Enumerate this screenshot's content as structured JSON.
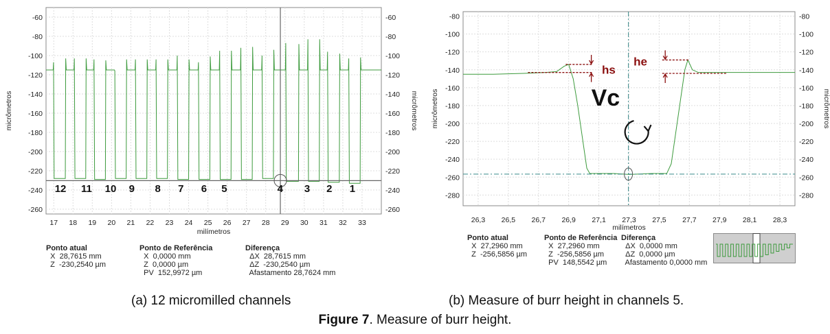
{
  "figure": {
    "number": "Figure 7",
    "title": ". Measure of burr height.",
    "caption_a": "(a) 12 micromilled channels",
    "caption_b": "(b) Measure of burr height in channels 5."
  },
  "panel_a": {
    "info": {
      "current_heading": "Ponto atual",
      "current_x": "X  28,7615 mm",
      "current_z": "Z  -230,2540 µm",
      "ref_heading": "Ponto de Referência",
      "ref_x": "X  0,0000 mm",
      "ref_z": "Z  0,0000 µm",
      "ref_pv": "PV  152,9972 µm",
      "diff_heading": "Diferença",
      "diff_x": "ΔX  28,7615 mm",
      "diff_z": "ΔZ  -230,2540 µm",
      "diff_dist": "Afastamento 28,7624 mm"
    }
  },
  "panel_b": {
    "annotations": {
      "hs": "hs",
      "he": "he",
      "vc": "Vc"
    },
    "info": {
      "current_heading": "Ponto atual",
      "current_x": "X  27,2960 mm",
      "current_z": "Z  -256,5856 µm",
      "ref_heading": "Ponto de Referência",
      "ref_x": "X  27,2960 mm",
      "ref_z": "Z  -256,5856 µm",
      "ref_pv": "PV  148,5542 µm",
      "diff_heading": "Diferença",
      "diff_x": "ΔX  0,0000 mm",
      "diff_z": "ΔZ  0,0000 µm",
      "diff_dist": "Afastamento 0,0000 mm"
    }
  },
  "chart_data": [
    {
      "type": "line",
      "xlabel": "milímetros",
      "ylabel": "micrômetros",
      "ylabel_right": "micrômetros",
      "xlim": [
        16.6,
        34.0
      ],
      "ylim": [
        -265,
        -50
      ],
      "x_ticks": [
        "17",
        "18",
        "19",
        "20",
        "21",
        "22",
        "23",
        "24",
        "25",
        "26",
        "27",
        "28",
        "29",
        "30",
        "31",
        "32",
        "33"
      ],
      "y_ticks": [
        -60,
        -80,
        -100,
        -120,
        -140,
        -160,
        -180,
        -200,
        -220,
        -240,
        -260
      ],
      "cursor_x": 28.76,
      "cursor_z": -230.25,
      "line_color": "#3c9a3c",
      "channel_labels": [
        "12",
        "11",
        "10",
        "9",
        "8",
        "7",
        "6",
        "5",
        "4",
        "3",
        "2",
        "1"
      ],
      "channel_label_x": [
        17.35,
        18.7,
        19.95,
        21.05,
        22.4,
        23.6,
        24.8,
        25.85,
        28.75,
        30.15,
        31.3,
        32.5
      ],
      "channels": [
        {
          "label": "12",
          "x_start": 17.0,
          "x_end": 17.62,
          "top_left": -107,
          "top_right": -103,
          "bottom": -228
        },
        {
          "label": "11",
          "x_start": 18.08,
          "x_end": 18.68,
          "top_left": -103,
          "top_right": -103,
          "bottom": -228
        },
        {
          "label": "10",
          "x_start": 19.1,
          "x_end": 19.7,
          "top_left": -104,
          "top_right": -105,
          "bottom": -229
        },
        {
          "label": "9",
          "x_start": 20.18,
          "x_end": 20.78,
          "top_left": -116,
          "top_right": -104,
          "bottom": -228
        },
        {
          "label": "8",
          "x_start": 21.25,
          "x_end": 21.85,
          "top_left": -104,
          "top_right": -104,
          "bottom": -228
        },
        {
          "label": "7",
          "x_start": 22.32,
          "x_end": 22.92,
          "top_left": -104,
          "top_right": -104,
          "bottom": -228
        },
        {
          "label": "6",
          "x_start": 23.42,
          "x_end": 24.02,
          "top_left": -100,
          "top_right": -104,
          "bottom": -229
        },
        {
          "label": "5",
          "x_start": 24.52,
          "x_end": 25.12,
          "top_left": -107,
          "top_right": -101,
          "bottom": -229
        },
        {
          "label": "4",
          "x_start": 25.62,
          "x_end": 26.22,
          "top_left": -95,
          "top_right": -95,
          "bottom": -229
        },
        {
          "label": "3",
          "x_start": 26.72,
          "x_end": 27.32,
          "top_left": -92,
          "top_right": -91,
          "bottom": -229
        },
        {
          "label": "2",
          "x_start": 27.82,
          "x_end": 28.42,
          "top_left": -100,
          "top_right": -94,
          "bottom": -228
        },
        {
          "label": "1",
          "x_start": 29.05,
          "x_end": 29.72,
          "top_left": -87,
          "top_right": -88,
          "bottom": -231
        },
        {
          "label": "",
          "x_start": 30.2,
          "x_end": 30.8,
          "top_left": -83,
          "top_right": -83,
          "bottom": -231
        },
        {
          "label": "",
          "x_start": 31.22,
          "x_end": 31.84,
          "top_left": -96,
          "top_right": -98,
          "bottom": -232
        },
        {
          "label": "",
          "x_start": 32.32,
          "x_end": 32.92,
          "top_left": -103,
          "top_right": -102,
          "bottom": -233
        }
      ],
      "baseline_level": -115
    },
    {
      "type": "line",
      "xlabel": "milímetros",
      "ylabel": "micrômetros",
      "ylabel_right": "micrômetros",
      "xlim": [
        26.2,
        28.4
      ],
      "ylim": [
        -292,
        -75
      ],
      "x_ticks": [
        "26,3",
        "26,5",
        "26,7",
        "26,9",
        "27,1",
        "27,3",
        "27,5",
        "27,7",
        "27,9",
        "28,1",
        "28,3"
      ],
      "x_tick_values": [
        26.3,
        26.5,
        26.7,
        26.9,
        27.1,
        27.3,
        27.5,
        27.7,
        27.9,
        28.1,
        28.3
      ],
      "y_ticks": [
        -80,
        -100,
        -120,
        -140,
        -160,
        -180,
        -200,
        -220,
        -240,
        -260,
        -280
      ],
      "cursor_x": 27.296,
      "cursor_z": -256.59,
      "line_color": "#3c9a3c",
      "profile": [
        [
          26.2,
          -145
        ],
        [
          26.4,
          -145
        ],
        [
          26.6,
          -144
        ],
        [
          26.75,
          -143
        ],
        [
          26.82,
          -142
        ],
        [
          26.87,
          -136
        ],
        [
          26.9,
          -134
        ],
        [
          26.93,
          -150
        ],
        [
          26.96,
          -180
        ],
        [
          26.99,
          -215
        ],
        [
          27.02,
          -250
        ],
        [
          27.04,
          -256
        ],
        [
          27.2,
          -256
        ],
        [
          27.3,
          -257
        ],
        [
          27.45,
          -256
        ],
        [
          27.55,
          -256
        ],
        [
          27.58,
          -245
        ],
        [
          27.61,
          -210
        ],
        [
          27.64,
          -175
        ],
        [
          27.67,
          -140
        ],
        [
          27.69,
          -129
        ],
        [
          27.72,
          -140
        ],
        [
          27.76,
          -143
        ],
        [
          27.9,
          -143
        ],
        [
          28.1,
          -143
        ],
        [
          28.3,
          -143
        ],
        [
          28.4,
          -143
        ]
      ],
      "burrs": {
        "hs": {
          "top": -134,
          "base": -143
        },
        "he": {
          "top": -129,
          "base": -144
        }
      }
    }
  ]
}
